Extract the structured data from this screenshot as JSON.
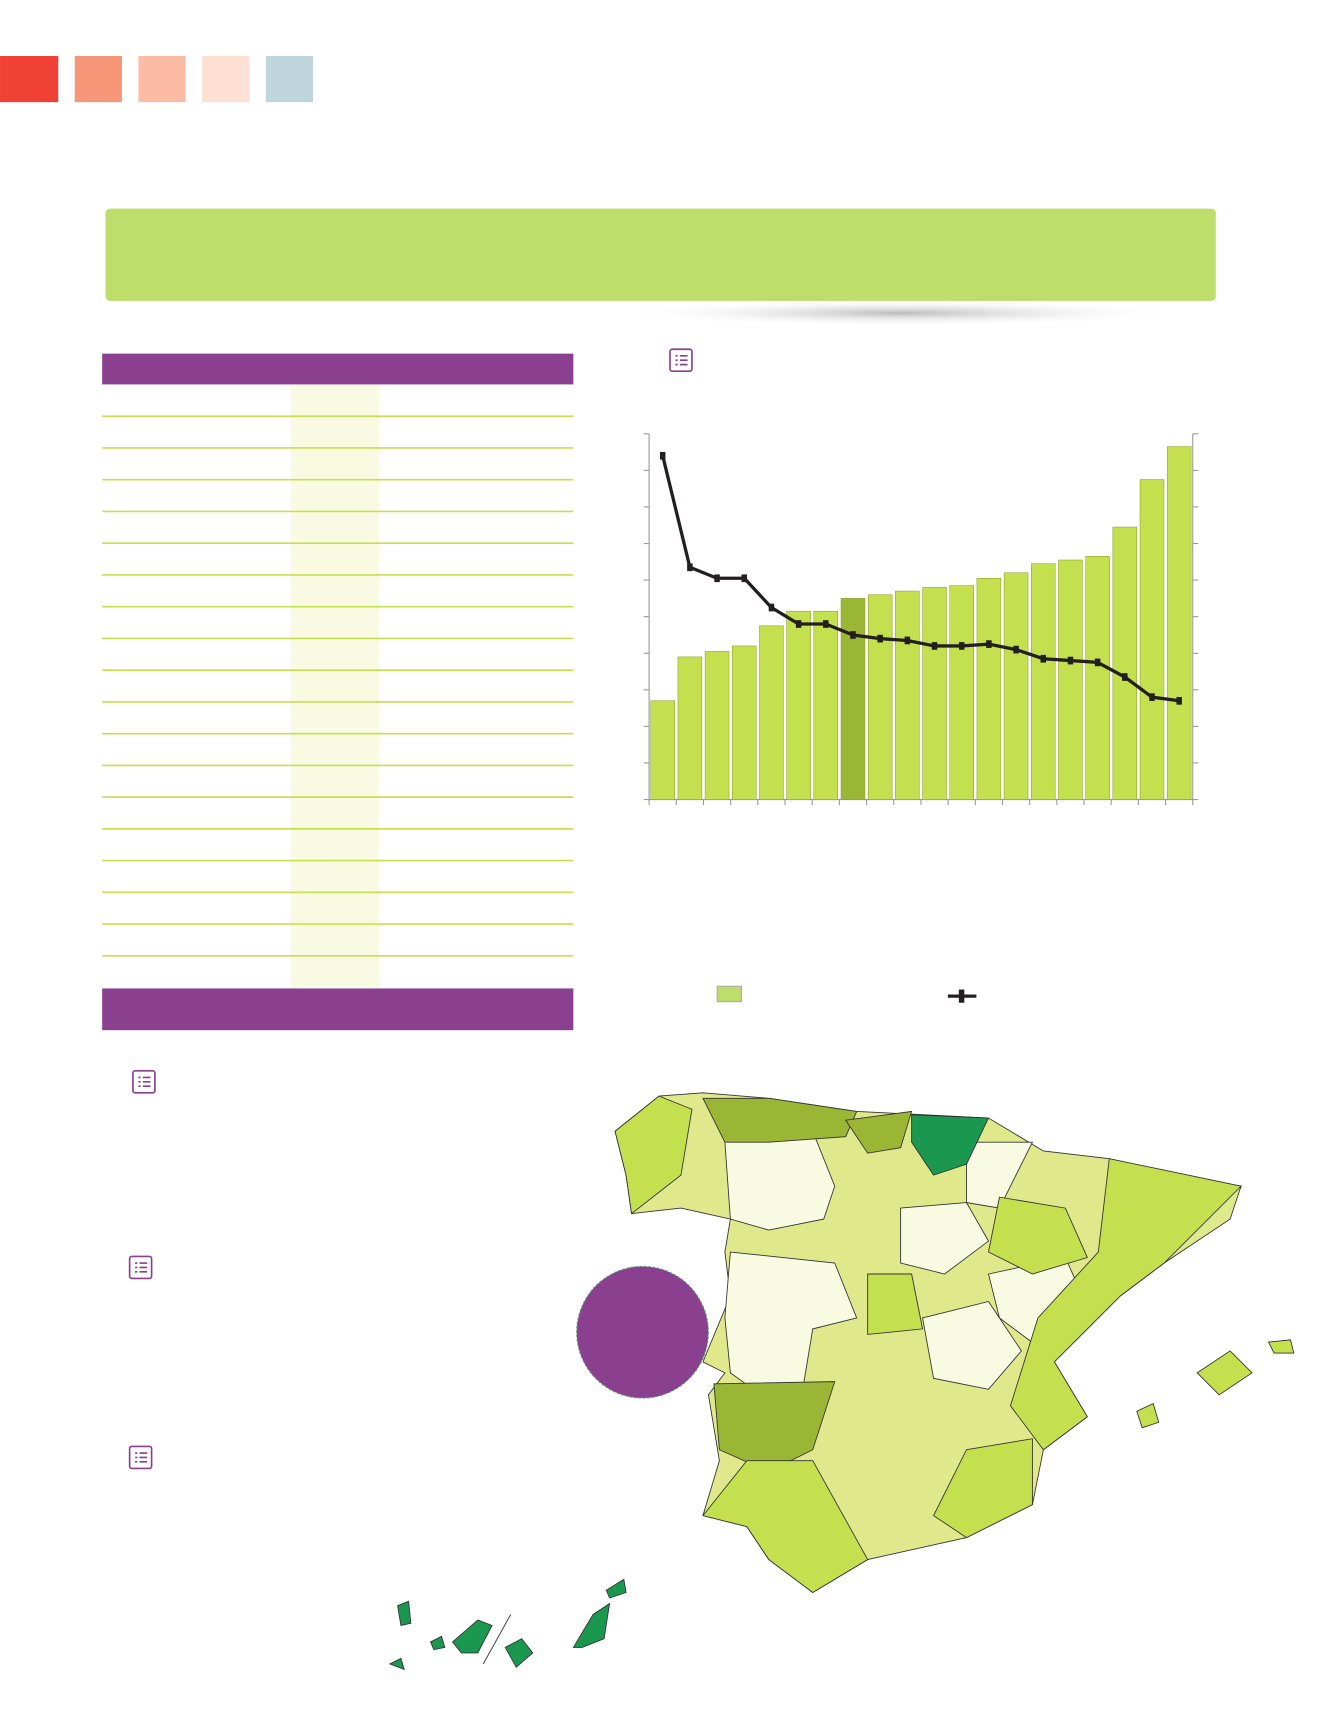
{
  "chart_data": {
    "type": "bar_line",
    "categories": [
      null,
      null,
      null,
      null,
      null,
      null,
      null,
      null,
      null,
      null,
      null,
      null,
      null,
      null,
      null,
      null,
      null,
      null,
      null,
      null
    ],
    "series": [
      {
        "type": "bar",
        "color": "#bede6c",
        "colors": [
          "#c5e04f",
          "#c5e04f",
          "#c5e04f",
          "#c5e04f",
          "#c5e04f",
          "#c5e04f",
          "#c5e04f",
          "#9bb535",
          "#c5e04f",
          "#c5e04f",
          "#c5e04f",
          "#c5e04f",
          "#c5e04f",
          "#c5e04f",
          "#c5e04f",
          "#c5e04f",
          "#c5e04f",
          "#c5e04f",
          "#c5e04f",
          "#c5e04f"
        ],
        "values": [
          2.7,
          3.9,
          4.05,
          4.2,
          4.75,
          5.15,
          5.15,
          5.5,
          5.6,
          5.7,
          5.8,
          5.85,
          6.05,
          6.2,
          6.45,
          6.55,
          6.65,
          7.45,
          8.75,
          9.65
        ]
      },
      {
        "type": "line",
        "color": "#231f20",
        "axis": "y2",
        "values": [
          9.4,
          6.35,
          6.05,
          6.05,
          5.25,
          4.8,
          4.8,
          4.5,
          4.4,
          4.35,
          4.2,
          4.2,
          4.25,
          4.1,
          3.85,
          3.8,
          3.75,
          3.35,
          2.8,
          2.7
        ]
      }
    ],
    "ylim": [
      0,
      10
    ],
    "yticks": [
      0,
      1,
      2,
      3,
      4,
      5,
      6,
      7,
      8,
      9,
      10
    ],
    "y2lim": [
      0,
      10
    ],
    "y2ticks": [
      0,
      1,
      2,
      3,
      4,
      5,
      6,
      7,
      8,
      9,
      10
    ]
  }
}
